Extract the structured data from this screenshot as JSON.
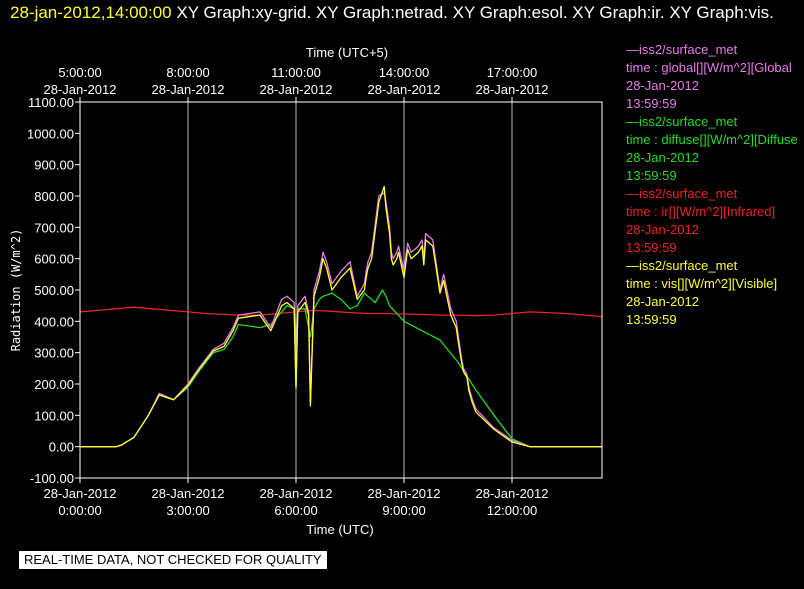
{
  "header": {
    "timestamp": "28-jan-2012,14:00:00",
    "graphs": "XY Graph:xy-grid.  XY Graph:netrad.  XY Graph:esol.  XY Graph:ir.  XY Graph:vis."
  },
  "banner": "REAL-TIME DATA, NOT CHECKED FOR QUALITY",
  "legend": [
    {
      "source": "—iss2/surface_met",
      "field": "time : global[][W/m^2][Global",
      "date": "28-Jan-2012",
      "time": "13:59:59",
      "color": "#e87be8"
    },
    {
      "source": "—iss2/surface_met",
      "field": "time : diffuse[][W/m^2][Diffuse",
      "date": "28-Jan-2012",
      "time": "13:59:59",
      "color": "#22dd22"
    },
    {
      "source": "—iss2/surface_met",
      "field": "time : ir[][W/m^2][Infrared]",
      "date": "28-Jan-2012",
      "time": "13:59:59",
      "color": "#ee2222"
    },
    {
      "source": "—iss2/surface_met",
      "field": "time : vis[][W/m^2][Visible]",
      "date": "28-Jan-2012",
      "time": "13:59:59",
      "color": "#ffff33"
    }
  ],
  "chart_data": {
    "type": "line",
    "ylabel": "Radiation (W/m^2)",
    "xlabel_bottom": "Time (UTC)",
    "xlabel_top": "Time (UTC+5)",
    "ylim": [
      -100,
      1100
    ],
    "xlim_hours_utc": [
      0,
      14.5
    ],
    "grid": "vertical",
    "yticks": [
      -100,
      0,
      100,
      200,
      300,
      400,
      500,
      600,
      700,
      800,
      900,
      1000,
      1100
    ],
    "ytick_labels": [
      "-100.00",
      "0.00",
      "100.00",
      "200.00",
      "300.00",
      "400.00",
      "500.00",
      "600.00",
      "700.00",
      "800.00",
      "900.00",
      "1000.00",
      "1100.00"
    ],
    "xticks_bottom": [
      {
        "hour": 0,
        "date": "28-Jan-2012",
        "time": "0:00:00"
      },
      {
        "hour": 3,
        "date": "28-Jan-2012",
        "time": "3:00:00"
      },
      {
        "hour": 6,
        "date": "28-Jan-2012",
        "time": "6:00:00"
      },
      {
        "hour": 9,
        "date": "28-Jan-2012",
        "time": "9:00:00"
      },
      {
        "hour": 12,
        "date": "28-Jan-2012",
        "time": "12:00:00"
      }
    ],
    "xticks_top": [
      {
        "hour": 0,
        "time": "5:00:00",
        "date": "28-Jan-2012"
      },
      {
        "hour": 3,
        "time": "8:00:00",
        "date": "28-Jan-2012"
      },
      {
        "hour": 6,
        "time": "11:00:00",
        "date": "28-Jan-2012"
      },
      {
        "hour": 9,
        "time": "14:00:00",
        "date": "28-Jan-2012"
      },
      {
        "hour": 12,
        "time": "17:00:00",
        "date": "28-Jan-2012"
      }
    ],
    "series": [
      {
        "name": "time : global[][W/m^2][Global",
        "color": "#e87be8",
        "x": [
          0,
          1,
          1.15,
          1.5,
          1.9,
          2.2,
          2.6,
          3.0,
          3.3,
          3.7,
          4.0,
          4.25,
          4.4,
          5.0,
          5.3,
          5.6,
          5.75,
          5.95,
          6.0,
          6.05,
          6.25,
          6.35,
          6.4,
          6.5,
          6.65,
          6.75,
          6.85,
          7.0,
          7.25,
          7.5,
          7.7,
          7.9,
          7.95,
          8.0,
          8.1,
          8.3,
          8.45,
          8.5,
          8.6,
          8.65,
          8.7,
          8.8,
          8.85,
          9.0,
          9.1,
          9.2,
          9.4,
          9.5,
          9.55,
          9.6,
          9.8,
          10.0,
          10.1,
          10.3,
          10.45,
          10.5,
          10.6,
          10.65,
          10.75,
          10.8,
          10.9,
          11.0,
          11.5,
          12.0,
          12.5,
          13.0,
          13.5,
          14.0,
          14.5
        ],
        "y": [
          0,
          0,
          5,
          30,
          100,
          170,
          150,
          200,
          250,
          310,
          330,
          380,
          420,
          430,
          380,
          470,
          480,
          460,
          200,
          450,
          480,
          430,
          140,
          500,
          560,
          620,
          590,
          520,
          560,
          590,
          480,
          520,
          560,
          590,
          620,
          800,
          810,
          780,
          700,
          620,
          600,
          620,
          640,
          560,
          650,
          620,
          640,
          660,
          600,
          680,
          660,
          500,
          550,
          440,
          400,
          360,
          280,
          250,
          230,
          190,
          150,
          120,
          60,
          20,
          0,
          0,
          0,
          0,
          0
        ]
      },
      {
        "name": "time : diffuse[][W/m^2][Diffuse",
        "color": "#22dd22",
        "x": [
          0,
          1,
          1.15,
          1.5,
          1.9,
          2.2,
          2.6,
          3.0,
          3.3,
          3.7,
          4.0,
          4.25,
          4.4,
          5.0,
          5.3,
          5.6,
          5.75,
          5.95,
          6.0,
          6.05,
          6.25,
          6.4,
          6.5,
          6.65,
          6.75,
          7.0,
          7.25,
          7.5,
          7.7,
          7.9,
          8.0,
          8.2,
          8.4,
          8.5,
          8.6,
          9.0,
          9.5,
          10.0,
          10.5,
          11.0,
          11.5,
          12.0,
          12.5,
          13.0,
          13.5,
          14.0,
          14.5
        ],
        "y": [
          0,
          0,
          5,
          30,
          100,
          165,
          150,
          190,
          240,
          300,
          310,
          350,
          390,
          380,
          390,
          430,
          450,
          440,
          180,
          440,
          440,
          350,
          440,
          470,
          480,
          490,
          470,
          440,
          450,
          490,
          480,
          460,
          500,
          480,
          450,
          400,
          370,
          340,
          270,
          180,
          100,
          25,
          0,
          0,
          0,
          0,
          0
        ]
      },
      {
        "name": "time : ir[][W/m^2][Infrared]",
        "color": "#ee2222",
        "x": [
          0,
          0.5,
          1.0,
          1.5,
          2.0,
          2.5,
          3.0,
          3.5,
          4.0,
          4.5,
          5.0,
          5.5,
          6.0,
          6.5,
          7.0,
          7.5,
          8.0,
          8.5,
          9.0,
          9.5,
          10.0,
          10.5,
          11.0,
          11.5,
          12.0,
          12.5,
          13.0,
          13.5,
          14.0,
          14.5
        ],
        "y": [
          430,
          435,
          440,
          445,
          440,
          435,
          430,
          425,
          422,
          420,
          420,
          425,
          430,
          435,
          432,
          428,
          425,
          425,
          423,
          422,
          420,
          420,
          418,
          420,
          425,
          430,
          428,
          425,
          420,
          415
        ]
      },
      {
        "name": "time : vis[][W/m^2][Visible]",
        "color": "#ffff33",
        "x": [
          0,
          1,
          1.15,
          1.5,
          1.9,
          2.2,
          2.6,
          3.0,
          3.3,
          3.7,
          4.0,
          4.25,
          4.4,
          5.0,
          5.3,
          5.6,
          5.75,
          5.95,
          6.0,
          6.05,
          6.25,
          6.35,
          6.4,
          6.5,
          6.65,
          6.75,
          6.85,
          7.0,
          7.25,
          7.5,
          7.7,
          7.9,
          7.95,
          8.0,
          8.1,
          8.3,
          8.45,
          8.5,
          8.6,
          8.65,
          8.7,
          8.8,
          8.85,
          9.0,
          9.1,
          9.2,
          9.4,
          9.5,
          9.55,
          9.6,
          9.8,
          10.0,
          10.1,
          10.3,
          10.45,
          10.5,
          10.6,
          10.65,
          10.75,
          10.8,
          10.9,
          11.0,
          11.5,
          12.0,
          12.5,
          13.0,
          13.5,
          14.0,
          14.5
        ],
        "y": [
          0,
          0,
          5,
          30,
          100,
          165,
          150,
          195,
          245,
          305,
          320,
          370,
          410,
          420,
          370,
          450,
          460,
          440,
          190,
          430,
          460,
          420,
          130,
          480,
          540,
          600,
          570,
          500,
          540,
          570,
          470,
          500,
          540,
          570,
          600,
          780,
          830,
          760,
          680,
          600,
          580,
          600,
          620,
          540,
          630,
          600,
          620,
          640,
          580,
          660,
          640,
          490,
          530,
          420,
          380,
          340,
          270,
          240,
          220,
          180,
          140,
          110,
          55,
          15,
          0,
          0,
          0,
          0,
          0
        ]
      }
    ]
  }
}
